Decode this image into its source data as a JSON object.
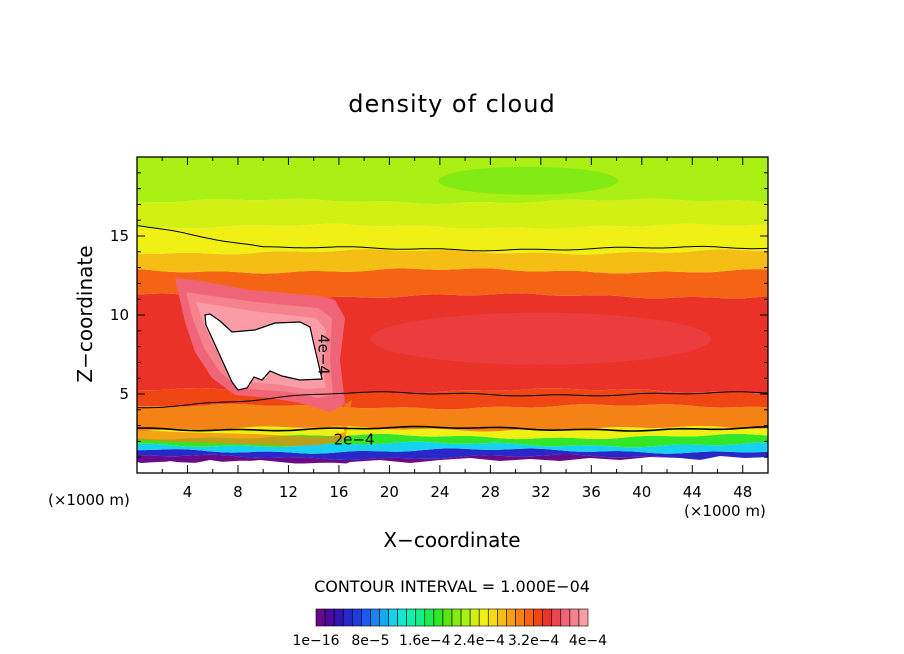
{
  "chart_data": {
    "type": "heatmap",
    "title": "density of cloud",
    "xlabel": "X−coordinate",
    "ylabel": "Z−coordinate",
    "x_unit_left": "(×1000 m)",
    "x_unit_right": "(×1000 m)",
    "x_range": [
      0,
      50
    ],
    "y_range": [
      0,
      20
    ],
    "x_ticks": [
      4,
      8,
      12,
      16,
      20,
      24,
      28,
      32,
      36,
      40,
      44,
      48
    ],
    "y_ticks": [
      5,
      10,
      15
    ],
    "contour_interval_text": "CONTOUR INTERVAL = 1.000E−04",
    "contour_labels": [
      {
        "text": "4e−4",
        "x": 14.4,
        "y": 7.5,
        "angle": 90
      },
      {
        "text": "2e−4",
        "x": 17.2,
        "y": 1.8,
        "angle": 0
      }
    ],
    "colorbar": {
      "colors": [
        "#6a0a8a",
        "#4b0aa0",
        "#3214b4",
        "#2828c8",
        "#1e3cdc",
        "#1e5af0",
        "#1e82f0",
        "#14aaf0",
        "#14d2f0",
        "#14e6d2",
        "#14f0aa",
        "#14f082",
        "#1eeb50",
        "#32e628",
        "#5ae614",
        "#82eb14",
        "#aaf014",
        "#d2f014",
        "#f0f014",
        "#f5dc14",
        "#f5be14",
        "#f5a014",
        "#f58214",
        "#f56414",
        "#f04614",
        "#eb3228",
        "#eb4650",
        "#f06478",
        "#f5828c",
        "#fa9ca5"
      ],
      "tick_labels": [
        "1e−16",
        "8e−5",
        "1.6e−4",
        "2.4e−4",
        "3.2e−4",
        "4e−4"
      ]
    },
    "bands_bottom_to_top": [
      {
        "name": "ground",
        "zmin": 0,
        "zmax": 0.6,
        "color": "#ffffff"
      },
      {
        "name": "purple",
        "zmin": 0.6,
        "zmax": 1.0,
        "color": "#6a0a8a"
      },
      {
        "name": "blue",
        "zmin": 1.0,
        "zmax": 1.4,
        "color": "#2828c8"
      },
      {
        "name": "cyan",
        "zmin": 1.4,
        "zmax": 1.8,
        "color": "#14d2f0"
      },
      {
        "name": "green",
        "zmin": 1.8,
        "zmax": 2.3,
        "color": "#32e628"
      },
      {
        "name": "yellow",
        "zmin": 2.3,
        "zmax": 2.8,
        "color": "#f0f014"
      },
      {
        "name": "orange",
        "zmin": 2.8,
        "zmax": 4.2,
        "color": "#f58214"
      },
      {
        "name": "red-orange",
        "zmin": 4.2,
        "zmax": 5.2,
        "color": "#f04614"
      },
      {
        "name": "red",
        "zmin": 5.2,
        "zmax": 11.2,
        "color": "#eb3228"
      },
      {
        "name": "orange-upper",
        "zmin": 11.2,
        "zmax": 12.8,
        "color": "#f56414"
      },
      {
        "name": "orange-yellow",
        "zmin": 12.8,
        "zmax": 14.0,
        "color": "#f5be14"
      },
      {
        "name": "yellow-upper",
        "zmin": 14.0,
        "zmax": 15.6,
        "color": "#f0f014"
      },
      {
        "name": "yellow-green",
        "zmin": 15.6,
        "zmax": 17.2,
        "color": "#d2f014"
      },
      {
        "name": "light-green",
        "zmin": 17.2,
        "zmax": 20,
        "color": "#aaf014"
      }
    ],
    "contour_lines_z": [
      2.8,
      5.0,
      14.2
    ],
    "max_region": {
      "label": "4e−4",
      "color": "#ffffff"
    }
  }
}
